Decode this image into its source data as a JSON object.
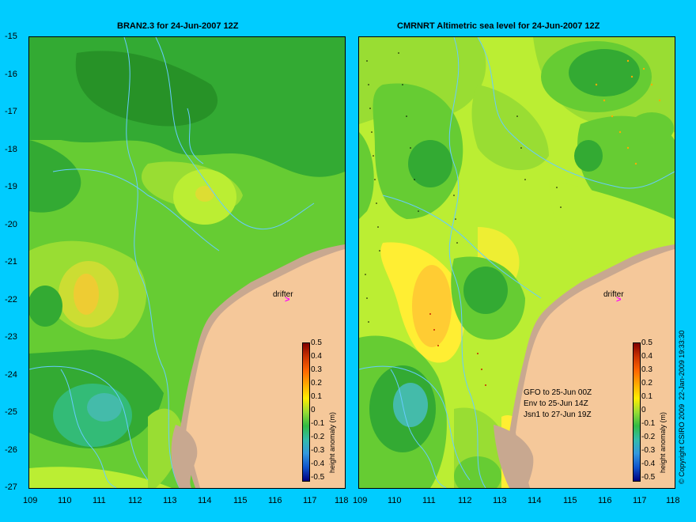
{
  "left_panel": {
    "title": "BRAN2.3 for 24-Jun-2007 12Z",
    "drifter_label": "drifter"
  },
  "right_panel": {
    "title": "CMRNRT Altimetric sea level  for 24-Jun-2007 12Z",
    "drifter_label": "drifter",
    "notes": [
      "GFO to 25-Jun 00Z",
      "Env to 25-Jun 14Z",
      "Jsn1 to 27-Jun 19Z"
    ]
  },
  "y_ticks": [
    "-15",
    "-16",
    "-17",
    "-18",
    "-19",
    "-20",
    "-21",
    "-22",
    "-23",
    "-24",
    "-25",
    "-26",
    "-27"
  ],
  "x_ticks": [
    "109",
    "110",
    "111",
    "112",
    "113",
    "114",
    "115",
    "116",
    "117",
    "118"
  ],
  "colorbar": {
    "label": "height anomaly (m)",
    "ticks": [
      "0.5",
      "0.4",
      "0.3",
      "0.2",
      "0.1",
      "0",
      "-0.1",
      "-0.2",
      "-0.3",
      "-0.4",
      "-0.5"
    ]
  },
  "copyright": "© Copyright CSIRO 2009",
  "timestamp": "22-Jan-2009 19:33:30",
  "colors": {
    "background": "#00ccff",
    "land": "#f5c89a",
    "coast_shelf": "#c8a890",
    "contour": "#66ccff",
    "drifter_marker": "#ff00ff"
  }
}
